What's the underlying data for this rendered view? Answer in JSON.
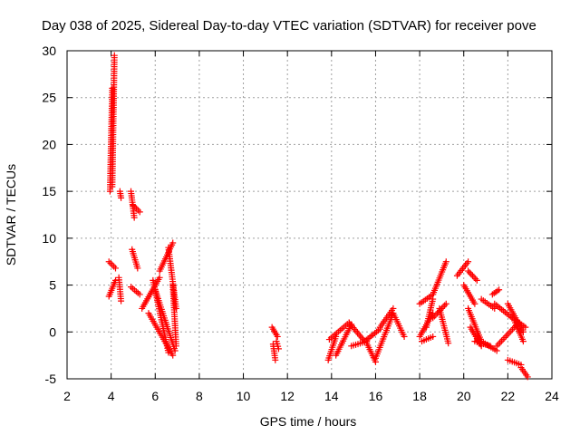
{
  "chart_data": {
    "type": "scatter",
    "title": "Day 038 of 2025, Sidereal Day-to-day VTEC variation (SDTVAR) for receiver pove",
    "xlabel": "GPS time / hours",
    "ylabel": "SDTVAR / TECUs",
    "xlim": [
      2,
      24
    ],
    "ylim": [
      -5,
      30
    ],
    "xticks": [
      "2",
      "4",
      "6",
      "8",
      "10",
      "12",
      "14",
      "16",
      "18",
      "20",
      "22",
      "24"
    ],
    "yticks": [
      "-5",
      "0",
      "5",
      "10",
      "15",
      "20",
      "25",
      "30"
    ],
    "grid": true,
    "marker": "plus",
    "color": "#ff0000",
    "segments": [
      {
        "x0": 3.95,
        "x1": 4.05,
        "y0": 15.0,
        "y1": 26.0
      },
      {
        "x0": 4.05,
        "x1": 4.15,
        "y0": 15.5,
        "y1": 29.5
      },
      {
        "x0": 3.9,
        "x1": 4.2,
        "y0": 7.5,
        "y1": 6.8
      },
      {
        "x0": 3.9,
        "x1": 4.2,
        "y0": 3.8,
        "y1": 5.5
      },
      {
        "x0": 4.4,
        "x1": 4.45,
        "y0": 15.0,
        "y1": 14.3
      },
      {
        "x0": 4.35,
        "x1": 4.45,
        "y0": 5.8,
        "y1": 3.3
      },
      {
        "x0": 4.9,
        "x1": 5.05,
        "y0": 15.0,
        "y1": 12.2
      },
      {
        "x0": 5.0,
        "x1": 5.3,
        "y0": 13.5,
        "y1": 12.8
      },
      {
        "x0": 4.95,
        "x1": 5.2,
        "y0": 8.8,
        "y1": 6.8
      },
      {
        "x0": 4.9,
        "x1": 5.3,
        "y0": 4.8,
        "y1": 4.0
      },
      {
        "x0": 5.4,
        "x1": 6.2,
        "y0": 2.5,
        "y1": 5.8
      },
      {
        "x0": 5.9,
        "x1": 6.6,
        "y0": 5.5,
        "y1": -2.2
      },
      {
        "x0": 6.0,
        "x1": 6.9,
        "y0": 4.5,
        "y1": -2.0
      },
      {
        "x0": 5.7,
        "x1": 6.8,
        "y0": 2.0,
        "y1": -2.5
      },
      {
        "x0": 6.2,
        "x1": 6.8,
        "y0": 6.5,
        "y1": 9.5
      },
      {
        "x0": 6.6,
        "x1": 6.95,
        "y0": 9.0,
        "y1": 2.5
      },
      {
        "x0": 6.8,
        "x1": 6.95,
        "y0": 5.0,
        "y1": -1.5
      },
      {
        "x0": 11.3,
        "x1": 11.55,
        "y0": 0.5,
        "y1": -0.5
      },
      {
        "x0": 11.35,
        "x1": 11.45,
        "y0": -1.3,
        "y1": -3.0
      },
      {
        "x0": 11.5,
        "x1": 11.6,
        "y0": -1.0,
        "y1": -1.8
      },
      {
        "x0": 13.85,
        "x1": 14.2,
        "y0": -3.0,
        "y1": -0.5
      },
      {
        "x0": 13.9,
        "x1": 14.8,
        "y0": -0.8,
        "y1": 1.0
      },
      {
        "x0": 14.2,
        "x1": 14.9,
        "y0": -2.5,
        "y1": 0.8
      },
      {
        "x0": 14.8,
        "x1": 15.5,
        "y0": 1.0,
        "y1": -1.0
      },
      {
        "x0": 14.9,
        "x1": 15.6,
        "y0": -1.5,
        "y1": -1.0
      },
      {
        "x0": 15.5,
        "x1": 16.2,
        "y0": -1.0,
        "y1": 0.3
      },
      {
        "x0": 15.6,
        "x1": 16.0,
        "y0": -1.2,
        "y1": -3.2
      },
      {
        "x0": 16.0,
        "x1": 16.8,
        "y0": -2.8,
        "y1": 2.0
      },
      {
        "x0": 16.2,
        "x1": 16.8,
        "y0": 0.5,
        "y1": 2.5
      },
      {
        "x0": 16.8,
        "x1": 17.3,
        "y0": 2.0,
        "y1": -0.5
      },
      {
        "x0": 18.0,
        "x1": 18.6,
        "y0": 3.0,
        "y1": 4.0
      },
      {
        "x0": 18.0,
        "x1": 18.6,
        "y0": -0.5,
        "y1": 2.0
      },
      {
        "x0": 18.1,
        "x1": 18.6,
        "y0": -1.0,
        "y1": -0.5
      },
      {
        "x0": 18.3,
        "x1": 18.6,
        "y0": 0.5,
        "y1": 3.5
      },
      {
        "x0": 18.6,
        "x1": 19.2,
        "y0": 4.0,
        "y1": 7.5
      },
      {
        "x0": 18.6,
        "x1": 19.2,
        "y0": 1.5,
        "y1": 3.0
      },
      {
        "x0": 18.9,
        "x1": 19.3,
        "y0": 2.5,
        "y1": -1.2
      },
      {
        "x0": 19.7,
        "x1": 20.2,
        "y0": 6.0,
        "y1": 7.5
      },
      {
        "x0": 20.2,
        "x1": 20.6,
        "y0": 6.5,
        "y1": 5.5
      },
      {
        "x0": 20.0,
        "x1": 20.5,
        "y0": 5.0,
        "y1": 3.0
      },
      {
        "x0": 20.2,
        "x1": 20.8,
        "y0": 2.5,
        "y1": -1.0
      },
      {
        "x0": 20.5,
        "x1": 21.2,
        "y0": -1.0,
        "y1": -1.5
      },
      {
        "x0": 20.3,
        "x1": 20.8,
        "y0": 0.5,
        "y1": -1.5
      },
      {
        "x0": 20.8,
        "x1": 21.5,
        "y0": -1.0,
        "y1": -2.0
      },
      {
        "x0": 20.8,
        "x1": 21.4,
        "y0": 3.5,
        "y1": 2.5
      },
      {
        "x0": 21.3,
        "x1": 21.6,
        "y0": 4.0,
        "y1": 4.5
      },
      {
        "x0": 21.4,
        "x1": 22.2,
        "y0": 3.0,
        "y1": 1.5
      },
      {
        "x0": 21.5,
        "x1": 22.5,
        "y0": -1.5,
        "y1": 1.0
      },
      {
        "x0": 22.0,
        "x1": 22.7,
        "y0": 3.0,
        "y1": 0.0
      },
      {
        "x0": 22.2,
        "x1": 22.8,
        "y0": 1.5,
        "y1": 0.5
      },
      {
        "x0": 22.3,
        "x1": 22.7,
        "y0": 1.2,
        "y1": -1.0
      },
      {
        "x0": 22.0,
        "x1": 22.6,
        "y0": -3.0,
        "y1": -3.5
      },
      {
        "x0": 22.6,
        "x1": 22.9,
        "y0": -3.8,
        "y1": -4.8
      }
    ]
  }
}
